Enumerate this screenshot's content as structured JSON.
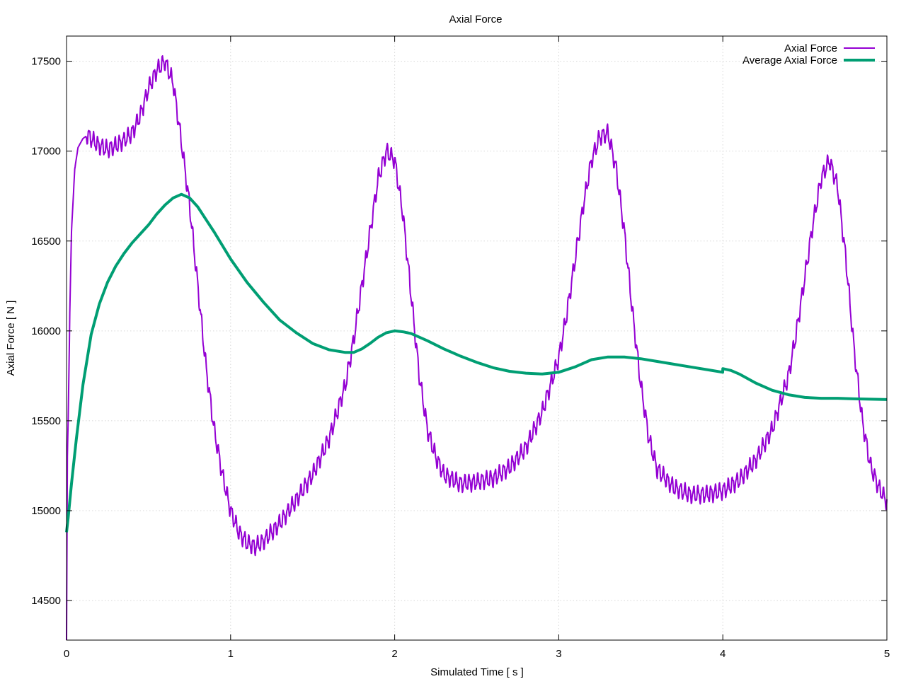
{
  "chart_data": {
    "type": "line",
    "title": "Axial Force",
    "xlabel": "Simulated Time [ s ]",
    "ylabel": "Axial Force [ N ]",
    "xlim": [
      0,
      5
    ],
    "ylim": [
      14280,
      17640
    ],
    "xticks": [
      "0",
      "1",
      "2",
      "3",
      "4",
      "5"
    ],
    "yticks": [
      "14500",
      "15000",
      "15500",
      "16000",
      "16500",
      "17000",
      "17500"
    ],
    "grid": true,
    "legend_position": "top-right",
    "series": [
      {
        "name": "Axial Force",
        "color": "#9400d3",
        "noise_amplitude": 40,
        "x": [
          0,
          0.005,
          0.01,
          0.02,
          0.03,
          0.05,
          0.07,
          0.1,
          0.13,
          0.16,
          0.2,
          0.25,
          0.3,
          0.35,
          0.4,
          0.45,
          0.5,
          0.55,
          0.6,
          0.65,
          0.7,
          0.75,
          0.8,
          0.85,
          0.9,
          0.95,
          1.0,
          1.05,
          1.1,
          1.15,
          1.2,
          1.3,
          1.4,
          1.5,
          1.6,
          1.7,
          1.75,
          1.8,
          1.85,
          1.9,
          1.95,
          2.0,
          2.05,
          2.1,
          2.15,
          2.2,
          2.25,
          2.3,
          2.4,
          2.5,
          2.6,
          2.7,
          2.8,
          2.9,
          3.0,
          3.05,
          3.1,
          3.15,
          3.2,
          3.25,
          3.3,
          3.35,
          3.4,
          3.45,
          3.5,
          3.55,
          3.6,
          3.7,
          3.8,
          3.9,
          4.0,
          4.1,
          4.2,
          4.3,
          4.4,
          4.45,
          4.5,
          4.55,
          4.6,
          4.65,
          4.7,
          4.75,
          4.8,
          4.85,
          4.9,
          4.95,
          5.0
        ],
        "y": [
          14280,
          15300,
          15500,
          16100,
          16550,
          16900,
          17020,
          17070,
          17090,
          17060,
          17030,
          17010,
          17030,
          17060,
          17100,
          17200,
          17350,
          17450,
          17500,
          17380,
          17050,
          16700,
          16250,
          15800,
          15450,
          15200,
          15000,
          14880,
          14820,
          14800,
          14830,
          14930,
          15060,
          15200,
          15400,
          15700,
          15950,
          16250,
          16550,
          16850,
          17000,
          16950,
          16650,
          16200,
          15750,
          15450,
          15300,
          15200,
          15150,
          15160,
          15180,
          15240,
          15350,
          15550,
          15850,
          16100,
          16400,
          16700,
          16950,
          17080,
          17100,
          16900,
          16550,
          16100,
          15700,
          15400,
          15230,
          15130,
          15090,
          15090,
          15110,
          15170,
          15280,
          15450,
          15750,
          16000,
          16300,
          16600,
          16850,
          16950,
          16800,
          16400,
          15900,
          15500,
          15250,
          15130,
          15050
        ]
      },
      {
        "name": "Average Axial Force",
        "color": "#009e73",
        "x": [
          0,
          0.01,
          0.03,
          0.06,
          0.1,
          0.15,
          0.2,
          0.25,
          0.3,
          0.35,
          0.4,
          0.45,
          0.5,
          0.55,
          0.6,
          0.65,
          0.7,
          0.75,
          0.8,
          0.85,
          0.9,
          1.0,
          1.1,
          1.2,
          1.3,
          1.4,
          1.5,
          1.6,
          1.7,
          1.75,
          1.8,
          1.85,
          1.9,
          1.95,
          2.0,
          2.05,
          2.1,
          2.2,
          2.3,
          2.4,
          2.5,
          2.6,
          2.7,
          2.8,
          2.9,
          3.0,
          3.1,
          3.2,
          3.3,
          3.4,
          3.45,
          3.5,
          3.6,
          3.7,
          3.8,
          3.9,
          3.999,
          4.0,
          4.05,
          4.1,
          4.2,
          4.3,
          4.4,
          4.5,
          4.6,
          4.7,
          4.8,
          4.9,
          5.0
        ],
        "y": [
          14880,
          14960,
          15150,
          15400,
          15700,
          15980,
          16150,
          16270,
          16360,
          16430,
          16490,
          16540,
          16590,
          16650,
          16700,
          16740,
          16760,
          16740,
          16690,
          16620,
          16550,
          16400,
          16270,
          16160,
          16060,
          15990,
          15930,
          15895,
          15880,
          15880,
          15900,
          15930,
          15965,
          15990,
          16000,
          15995,
          15985,
          15945,
          15900,
          15860,
          15825,
          15795,
          15775,
          15765,
          15760,
          15770,
          15800,
          15840,
          15855,
          15855,
          15850,
          15845,
          15830,
          15815,
          15800,
          15785,
          15770,
          15790,
          15780,
          15760,
          15710,
          15670,
          15645,
          15630,
          15625,
          15625,
          15622,
          15620,
          15618
        ]
      }
    ]
  }
}
